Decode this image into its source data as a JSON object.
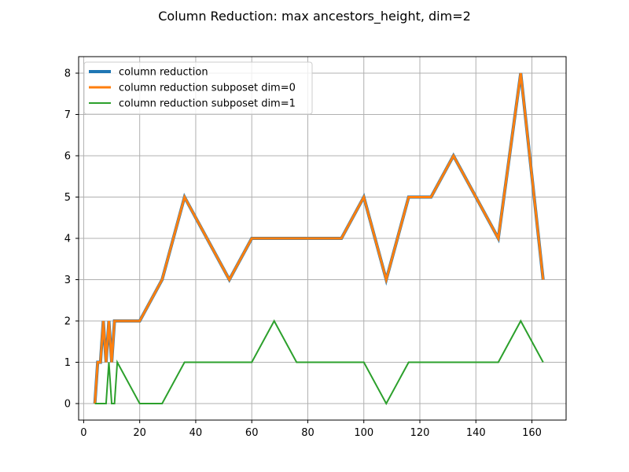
{
  "chart_data": {
    "type": "line",
    "title": "Column Reduction: max ancestors_height, dim=2",
    "xlabel": "",
    "ylabel": "",
    "xlim": [
      -1.8,
      172.2
    ],
    "ylim": [
      -0.4,
      8.4
    ],
    "xticks": [
      0,
      20,
      40,
      60,
      80,
      100,
      120,
      140,
      160
    ],
    "yticks": [
      0,
      1,
      2,
      3,
      4,
      5,
      6,
      7,
      8
    ],
    "grid": true,
    "legend_position": "upper-left",
    "series": [
      {
        "name": "column reduction",
        "color": "#1f77b4",
        "x": [
          4,
          5,
          6,
          7,
          8,
          9,
          10,
          11,
          12,
          20,
          28,
          36,
          52,
          60,
          92,
          100,
          108,
          116,
          124,
          132,
          148,
          156,
          164
        ],
        "values": [
          0,
          1,
          1,
          2,
          1,
          2,
          1,
          2,
          2,
          2,
          3,
          5,
          3,
          4,
          4,
          5,
          3,
          5,
          5,
          6,
          4,
          8,
          3
        ]
      },
      {
        "name": "column reduction subposet dim=0",
        "color": "#ff7f0e",
        "x": [
          4,
          5,
          6,
          7,
          8,
          9,
          10,
          11,
          12,
          20,
          28,
          36,
          52,
          60,
          92,
          100,
          108,
          116,
          124,
          132,
          148,
          156,
          164
        ],
        "values": [
          0,
          1,
          1,
          2,
          1,
          2,
          1,
          2,
          2,
          2,
          3,
          5,
          3,
          4,
          4,
          5,
          3,
          5,
          5,
          6,
          4,
          8,
          3
        ]
      },
      {
        "name": "column reduction subposet dim=1",
        "color": "#2ca02c",
        "x": [
          4,
          8,
          9,
          10,
          11,
          12,
          20,
          28,
          36,
          60,
          68,
          76,
          100,
          108,
          116,
          148,
          156,
          164
        ],
        "values": [
          0,
          0,
          1,
          0,
          0,
          1,
          0,
          0,
          1,
          1,
          2,
          1,
          1,
          0,
          1,
          1,
          2,
          1
        ]
      }
    ]
  }
}
